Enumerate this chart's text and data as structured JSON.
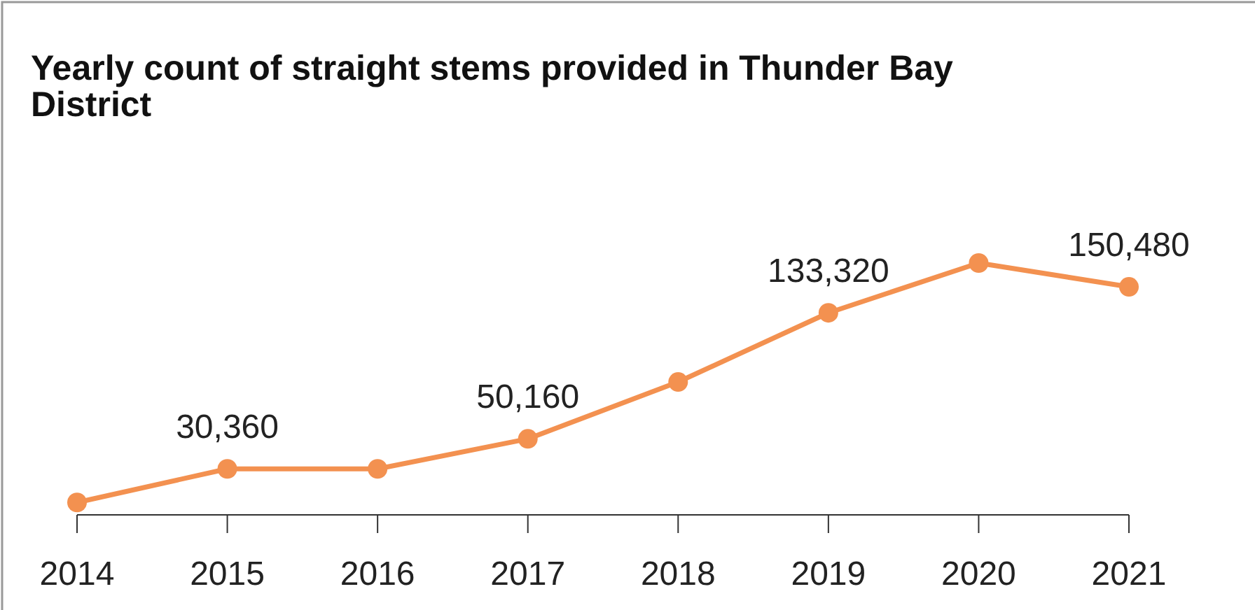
{
  "chart_data": {
    "type": "line",
    "title": "Yearly count of straight stems provided in Thunder Bay District",
    "categories": [
      "2014",
      "2015",
      "2016",
      "2017",
      "2018",
      "2019",
      "2020",
      "2021"
    ],
    "series": [
      {
        "color": "#f39150",
        "values": [
          8200,
          30360,
          30360,
          50160,
          87700,
          133320,
          166200,
          150480
        ],
        "value_labels": [
          null,
          "30,360",
          null,
          "50,160",
          null,
          "133,320",
          null,
          "150,480"
        ]
      }
    ],
    "marker": "circle"
  }
}
